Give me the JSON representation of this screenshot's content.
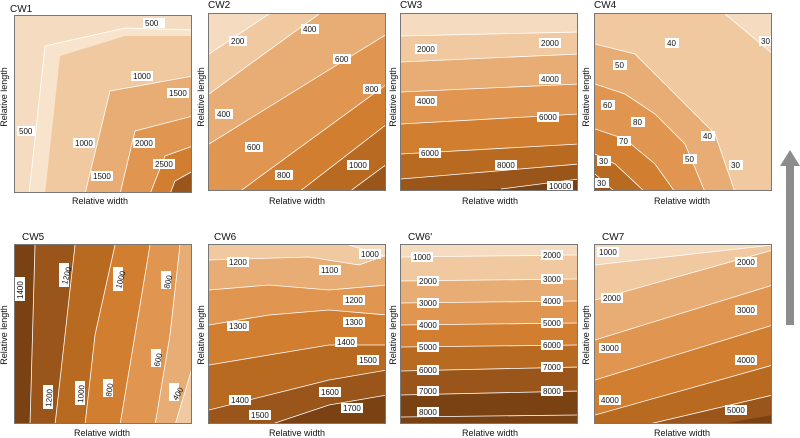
{
  "figure": {
    "arrow_color": "#8c8c8c",
    "palette": [
      "#f5dcc0",
      "#f0c9a0",
      "#e8ad74",
      "#e09550",
      "#d27e30",
      "#b86a20",
      "#9a561a",
      "#7a4212"
    ]
  },
  "chart_data": [
    {
      "type": "contour",
      "title": "CW1",
      "xlabel": "Relative width",
      "ylabel": "Relative length",
      "levels": [
        "500",
        "1000",
        "1500",
        "2000",
        "2500"
      ],
      "labels": [
        "500",
        "1000",
        "1500",
        "500",
        "1000",
        "2000",
        "1500",
        "2500"
      ]
    },
    {
      "type": "contour",
      "title": "CW2",
      "xlabel": "Relative width",
      "ylabel": "Relative length",
      "levels": [
        "200",
        "400",
        "600",
        "800",
        "1000"
      ],
      "labels": [
        "200",
        "400",
        "600",
        "800",
        "400",
        "600",
        "800",
        "1000"
      ]
    },
    {
      "type": "contour",
      "title": "CW3",
      "xlabel": "Relative width",
      "ylabel": "Relative length",
      "levels": [
        "2000",
        "4000",
        "6000",
        "8000",
        "10000"
      ],
      "labels": [
        "2000",
        "2000",
        "4000",
        "4000",
        "6000",
        "6000",
        "8000",
        "10000"
      ]
    },
    {
      "type": "contour",
      "title": "CW4",
      "xlabel": "Relative width",
      "ylabel": "Relative length",
      "levels": [
        "30",
        "40",
        "50",
        "60",
        "70",
        "80"
      ],
      "labels": [
        "30",
        "40",
        "50",
        "60",
        "70",
        "80",
        "30",
        "40",
        "50",
        "30",
        "30"
      ]
    },
    {
      "type": "contour",
      "title": "CW5",
      "xlabel": "Relative width",
      "ylabel": "Relative length",
      "levels": [
        "400",
        "600",
        "800",
        "1000",
        "1200",
        "1400"
      ],
      "labels": [
        "1400",
        "1200",
        "1000",
        "800",
        "600",
        "400",
        "1200",
        "1000",
        "800"
      ]
    },
    {
      "type": "contour",
      "title": "CW6",
      "xlabel": "Relative width",
      "ylabel": "Relative length",
      "levels": [
        "1000",
        "1100",
        "1200",
        "1300",
        "1400",
        "1500",
        "1600",
        "1700"
      ],
      "labels": [
        "1200",
        "1100",
        "1000",
        "1200",
        "1300",
        "1300",
        "1400",
        "1500",
        "1400",
        "1500",
        "1600",
        "1700"
      ]
    },
    {
      "type": "contour",
      "title": "CW6'",
      "xlabel": "Relative width",
      "ylabel": "Relative length",
      "levels": [
        "1000",
        "2000",
        "3000",
        "4000",
        "5000",
        "6000",
        "7000",
        "8000"
      ],
      "labels": [
        "1000",
        "2000",
        "3000",
        "4000",
        "5000",
        "6000",
        "7000",
        "8000",
        "2000",
        "3000",
        "4000",
        "5000",
        "6000",
        "7000",
        "8000"
      ]
    },
    {
      "type": "contour",
      "title": "CW7",
      "xlabel": "Relative width",
      "ylabel": "Relative length",
      "levels": [
        "1000",
        "2000",
        "3000",
        "4000",
        "5000"
      ],
      "labels": [
        "1000",
        "2000",
        "2000",
        "3000",
        "3000",
        "4000",
        "4000",
        "5000"
      ]
    }
  ]
}
